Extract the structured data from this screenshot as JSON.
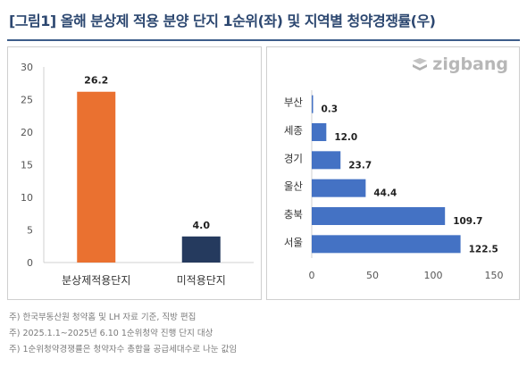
{
  "title": "[그림1] 올해 분상제 적용 분양 단지 1순위(좌) 및 지역별 청약경쟁률(우)",
  "logo_text": "zigbang",
  "notes": [
    "주) 한국부동산원 청약홈 및 LH 자료 기준, 직방 편집",
    "주) 2025.1.1~2025년 6.10 1순위청약 진행 단지 대상",
    "주) 1순위청약경쟁률은 청약자수 총합을 공급세대수로 나눈 값임"
  ],
  "colors": {
    "accent_orange": "#ea7130",
    "navy": "#253a5e",
    "blue": "#4472c4",
    "title": "#2c4770"
  },
  "chart_data": [
    {
      "type": "bar",
      "orientation": "vertical",
      "categories": [
        "분상제적용단지",
        "미적용단지"
      ],
      "values": [
        26.2,
        4.0
      ],
      "value_labels": [
        "26.2",
        "4.0"
      ],
      "colors": [
        "#ea7130",
        "#253a5e"
      ],
      "ylim": [
        0,
        30
      ],
      "yticks": [
        0,
        5,
        10,
        15,
        20,
        25,
        30
      ],
      "grid": false
    },
    {
      "type": "bar",
      "orientation": "horizontal",
      "categories": [
        "부산",
        "세종",
        "경기",
        "울산",
        "충북",
        "서울"
      ],
      "values": [
        0.3,
        12.0,
        23.7,
        44.4,
        109.7,
        122.5
      ],
      "value_labels": [
        "0.3",
        "12.0",
        "23.7",
        "44.4",
        "109.7",
        "122.5"
      ],
      "color": "#4472c4",
      "xlim": [
        0,
        150
      ],
      "xticks": [
        0,
        50,
        100,
        150
      ],
      "grid": false
    }
  ]
}
